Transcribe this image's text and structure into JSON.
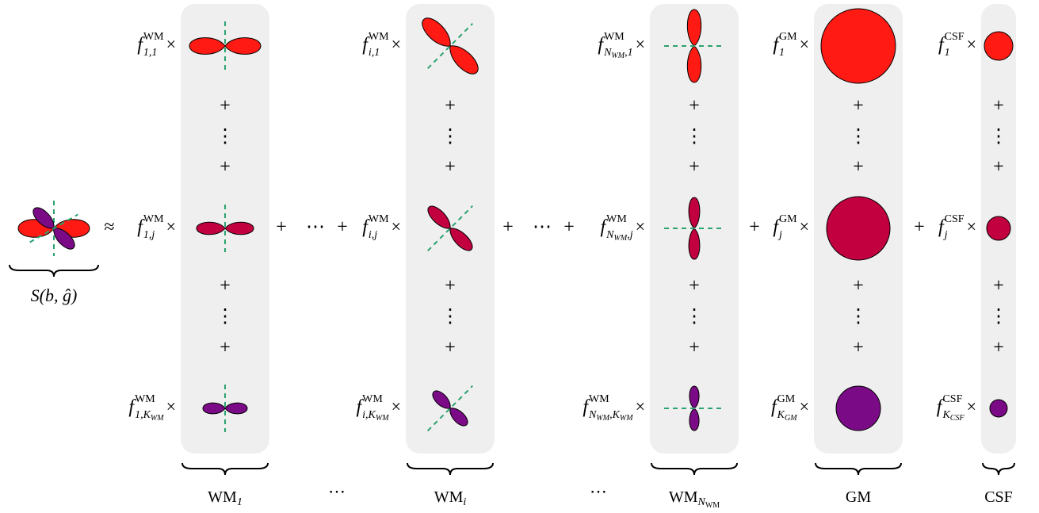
{
  "signal_label": "S(b, ĝ)",
  "approx": "≈",
  "operators": {
    "times": "×",
    "plus": "+",
    "vdots": "⋮",
    "cdots": "⋯"
  },
  "columns": [
    {
      "label": {
        "base": "WM",
        "sub": [
          "1"
        ]
      },
      "coefficients": [
        {
          "base": "f",
          "sup": "WM",
          "sub": [
            "1,1"
          ]
        },
        {
          "base": "f",
          "sup": "WM",
          "sub": [
            "1,j"
          ]
        },
        {
          "base": "f",
          "sup": "WM",
          "sub": [
            "1,K",
            "WM"
          ]
        }
      ]
    },
    {
      "label": {
        "base": "WM",
        "sub": [
          "i"
        ]
      },
      "coefficients": [
        {
          "base": "f",
          "sup": "WM",
          "sub": [
            "i,1"
          ]
        },
        {
          "base": "f",
          "sup": "WM",
          "sub": [
            "i,j"
          ]
        },
        {
          "base": "f",
          "sup": "WM",
          "sub": [
            "i,K",
            "WM"
          ]
        }
      ]
    },
    {
      "label": {
        "base": "WM",
        "sub": [
          "N",
          "WM"
        ]
      },
      "coefficients": [
        {
          "base": "f",
          "sup": "WM",
          "sub": [
            "N",
            "WM",
            ",1"
          ]
        },
        {
          "base": "f",
          "sup": "WM",
          "sub": [
            "N",
            "WM",
            ",j"
          ]
        },
        {
          "base": "f",
          "sup": "WM",
          "sub": [
            "N",
            "WM",
            ",K",
            "WM"
          ]
        }
      ]
    },
    {
      "label": {
        "base": "GM",
        "sub": []
      },
      "coefficients": [
        {
          "base": "f",
          "sup": "GM",
          "sub": [
            "1"
          ]
        },
        {
          "base": "f",
          "sup": "GM",
          "sub": [
            "j"
          ]
        },
        {
          "base": "f",
          "sup": "GM",
          "sub": [
            "K",
            "GM"
          ]
        }
      ]
    },
    {
      "label": {
        "base": "CSF",
        "sub": []
      },
      "coefficients": [
        {
          "base": "f",
          "sup": "CSF",
          "sub": [
            "1"
          ]
        },
        {
          "base": "f",
          "sup": "CSF",
          "sub": [
            "j"
          ]
        },
        {
          "base": "f",
          "sup": "CSF",
          "sub": [
            "K",
            "CSF"
          ]
        }
      ]
    }
  ]
}
